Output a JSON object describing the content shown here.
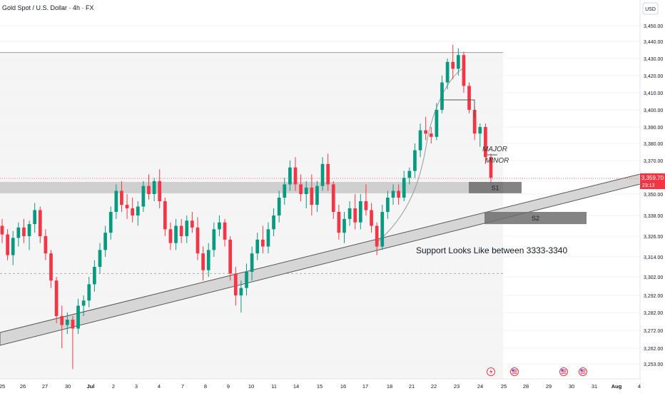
{
  "header": {
    "title": "Gold Spot / U.S. Dollar · 4h · FX",
    "currency": "USD"
  },
  "chart_data": {
    "type": "candlestick",
    "ylim": [
      3245,
      3458
    ],
    "y_ticks": [
      3450,
      3440,
      3430,
      3420,
      3410,
      3400,
      3390,
      3380,
      3370,
      3350,
      3338,
      3326,
      3314,
      3302,
      3292,
      3282,
      3272,
      3262,
      3253
    ],
    "y_tick_labels": [
      "3,450.00",
      "3,440.00",
      "3,430.00",
      "3,420.00",
      "3,410.00",
      "3,400.00",
      "3,390.00",
      "3,380.00",
      "3,370.00",
      "3,350.00",
      "3,338.00",
      "3,326.00",
      "3,314.00",
      "3,302.00",
      "3,292.00",
      "3,282.00",
      "3,272.00",
      "3,262.00",
      "3,253.00"
    ],
    "x_tick_labels": [
      "25",
      "26",
      "27",
      "30",
      "Jul",
      "2",
      "3",
      "4",
      "7",
      "8",
      "9",
      "10",
      "11",
      "14",
      "15",
      "16",
      "17",
      "18",
      "21",
      "22",
      "23",
      "24",
      "25",
      "28",
      "29",
      "30",
      "31",
      "Aug",
      "4"
    ],
    "current_price": {
      "label": "3,359.70",
      "countdown": "23:13",
      "value": 3359.7,
      "color": "#f23645"
    },
    "colors": {
      "up": "#089981",
      "down": "#f23645",
      "zone": "#c8c8c8",
      "label_box": "#6e6e6e",
      "text": "#131722"
    },
    "levels": {
      "range_high": 3433.5,
      "support_band": [
        3350.5,
        3357.5
      ],
      "dashed_level": 3304
    },
    "boxes": [
      {
        "label": "S1",
        "low": 3350.5,
        "high": 3357.5
      },
      {
        "label": "S2",
        "low": 3333,
        "high": 3340
      }
    ],
    "annotations": {
      "major": "MAJOR",
      "minor": "MINOR",
      "support_note": "Support Looks Like between 3333-3340"
    },
    "ohlc": [
      [
        3332,
        3336,
        3322,
        3327
      ],
      [
        3327,
        3330,
        3312,
        3315
      ],
      [
        3315,
        3329,
        3309,
        3325
      ],
      [
        3325,
        3334,
        3320,
        3331
      ],
      [
        3331,
        3336,
        3322,
        3326
      ],
      [
        3326,
        3335,
        3318,
        3333
      ],
      [
        3333,
        3345,
        3328,
        3341
      ],
      [
        3341,
        3343,
        3322,
        3326
      ],
      [
        3326,
        3330,
        3312,
        3316
      ],
      [
        3316,
        3318,
        3296,
        3300
      ],
      [
        3300,
        3302,
        3276,
        3280
      ],
      [
        3280,
        3286,
        3262,
        3275
      ],
      [
        3275,
        3282,
        3270,
        3278
      ],
      [
        3278,
        3280,
        3250,
        3273
      ],
      [
        3273,
        3290,
        3270,
        3286
      ],
      [
        3286,
        3292,
        3280,
        3289
      ],
      [
        3289,
        3302,
        3285,
        3298
      ],
      [
        3298,
        3312,
        3294,
        3308
      ],
      [
        3308,
        3322,
        3304,
        3318
      ],
      [
        3318,
        3332,
        3314,
        3328
      ],
      [
        3328,
        3343,
        3324,
        3340
      ],
      [
        3340,
        3356,
        3336,
        3352
      ],
      [
        3352,
        3358,
        3340,
        3344
      ],
      [
        3344,
        3350,
        3336,
        3342
      ],
      [
        3342,
        3348,
        3334,
        3338
      ],
      [
        3338,
        3346,
        3332,
        3343
      ],
      [
        3343,
        3358,
        3340,
        3355
      ],
      [
        3355,
        3362,
        3347,
        3350
      ],
      [
        3350,
        3360,
        3346,
        3358
      ],
      [
        3358,
        3365,
        3342,
        3346
      ],
      [
        3346,
        3348,
        3326,
        3330
      ],
      [
        3330,
        3334,
        3318,
        3322
      ],
      [
        3322,
        3336,
        3318,
        3332
      ],
      [
        3332,
        3336,
        3322,
        3326
      ],
      [
        3326,
        3338,
        3322,
        3335
      ],
      [
        3335,
        3340,
        3328,
        3331
      ],
      [
        3331,
        3337,
        3312,
        3316
      ],
      [
        3316,
        3320,
        3300,
        3306
      ],
      [
        3306,
        3322,
        3302,
        3318
      ],
      [
        3318,
        3334,
        3314,
        3330
      ],
      [
        3330,
        3338,
        3326,
        3334
      ],
      [
        3334,
        3336,
        3320,
        3324
      ],
      [
        3324,
        3326,
        3300,
        3304
      ],
      [
        3304,
        3308,
        3286,
        3292
      ],
      [
        3292,
        3300,
        3282,
        3296
      ],
      [
        3296,
        3310,
        3292,
        3305
      ],
      [
        3305,
        3320,
        3300,
        3316
      ],
      [
        3316,
        3328,
        3312,
        3324
      ],
      [
        3324,
        3332,
        3316,
        3320
      ],
      [
        3320,
        3334,
        3316,
        3330
      ],
      [
        3330,
        3342,
        3326,
        3338
      ],
      [
        3338,
        3352,
        3334,
        3348
      ],
      [
        3348,
        3360,
        3344,
        3356
      ],
      [
        3356,
        3370,
        3352,
        3366
      ],
      [
        3366,
        3372,
        3352,
        3356
      ],
      [
        3356,
        3362,
        3346,
        3350
      ],
      [
        3350,
        3358,
        3342,
        3354
      ],
      [
        3354,
        3362,
        3338,
        3344
      ],
      [
        3344,
        3358,
        3340,
        3355
      ],
      [
        3355,
        3372,
        3352,
        3368
      ],
      [
        3368,
        3374,
        3352,
        3356
      ],
      [
        3356,
        3358,
        3336,
        3340
      ],
      [
        3340,
        3344,
        3324,
        3328
      ],
      [
        3328,
        3340,
        3322,
        3336
      ],
      [
        3336,
        3346,
        3332,
        3342
      ],
      [
        3342,
        3350,
        3330,
        3334
      ],
      [
        3334,
        3350,
        3330,
        3346
      ],
      [
        3346,
        3356,
        3338,
        3341
      ],
      [
        3341,
        3345,
        3328,
        3332
      ],
      [
        3332,
        3334,
        3315,
        3320
      ],
      [
        3320,
        3344,
        3318,
        3340
      ],
      [
        3340,
        3352,
        3336,
        3348
      ],
      [
        3348,
        3356,
        3344,
        3352
      ],
      [
        3352,
        3356,
        3344,
        3348
      ],
      [
        3348,
        3364,
        3346,
        3360
      ],
      [
        3360,
        3366,
        3356,
        3364
      ],
      [
        3364,
        3380,
        3360,
        3376
      ],
      [
        3376,
        3392,
        3372,
        3388
      ],
      [
        3388,
        3396,
        3382,
        3386
      ],
      [
        3386,
        3390,
        3380,
        3384
      ],
      [
        3384,
        3404,
        3382,
        3400
      ],
      [
        3400,
        3420,
        3398,
        3416
      ],
      [
        3416,
        3430,
        3412,
        3428
      ],
      [
        3428,
        3438,
        3418,
        3424
      ],
      [
        3424,
        3436,
        3420,
        3432
      ],
      [
        3432,
        3434,
        3410,
        3414
      ],
      [
        3414,
        3416,
        3398,
        3400
      ],
      [
        3400,
        3402,
        3382,
        3386
      ],
      [
        3386,
        3392,
        3378,
        3390
      ],
      [
        3390,
        3392,
        3368,
        3372
      ],
      [
        3372,
        3374,
        3356,
        3360
      ]
    ]
  }
}
